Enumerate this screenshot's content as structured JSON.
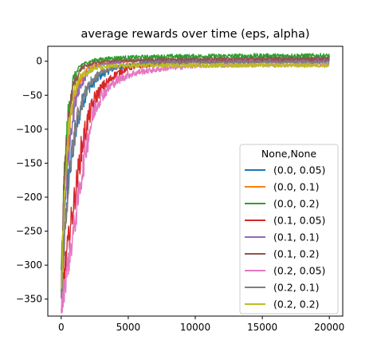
{
  "chart_data": {
    "type": "line",
    "title": "average rewards over time (eps, alpha)",
    "xlabel": "",
    "ylabel": "",
    "xlim": [
      -1000,
      21000
    ],
    "ylim": [
      -375,
      22
    ],
    "xticks": [
      0,
      5000,
      10000,
      15000,
      20000
    ],
    "xtick_labels": [
      "0",
      "5000",
      "10000",
      "15000",
      "20000"
    ],
    "yticks": [
      0,
      -50,
      -100,
      -150,
      -200,
      -250,
      -300,
      -350
    ],
    "ytick_labels": [
      "0",
      "−50",
      "−100",
      "−150",
      "−200",
      "−250",
      "−300",
      "−350"
    ],
    "grid": false,
    "legend": {
      "title": "None,None",
      "placement": "lower-right"
    },
    "series": [
      {
        "name": "(0.0, 0.05)",
        "color": "#1f77b4",
        "points": [
          [
            0,
            -340
          ],
          [
            500,
            -180
          ],
          [
            1000,
            -110
          ],
          [
            1500,
            -65
          ],
          [
            2000,
            -40
          ],
          [
            3000,
            -20
          ],
          [
            4000,
            -10
          ],
          [
            6000,
            -3
          ],
          [
            10000,
            0
          ],
          [
            15000,
            2
          ],
          [
            20000,
            3
          ]
        ]
      },
      {
        "name": "(0.0, 0.1)",
        "color": "#ff7f0e",
        "points": [
          [
            0,
            -330
          ],
          [
            300,
            -170
          ],
          [
            700,
            -80
          ],
          [
            1200,
            -35
          ],
          [
            2000,
            -10
          ],
          [
            3000,
            -3
          ],
          [
            5000,
            0
          ],
          [
            10000,
            1
          ],
          [
            15000,
            2
          ],
          [
            20000,
            2
          ]
        ]
      },
      {
        "name": "(0.0, 0.2)",
        "color": "#2ca02c",
        "points": [
          [
            0,
            -320
          ],
          [
            200,
            -180
          ],
          [
            500,
            -80
          ],
          [
            900,
            -25
          ],
          [
            1500,
            -5
          ],
          [
            2500,
            2
          ],
          [
            4000,
            5
          ],
          [
            8000,
            7
          ],
          [
            15000,
            8
          ],
          [
            20000,
            8
          ]
        ]
      },
      {
        "name": "(0.1, 0.05)",
        "color": "#d62728",
        "points": [
          [
            0,
            -350
          ],
          [
            500,
            -270
          ],
          [
            1000,
            -200
          ],
          [
            1500,
            -130
          ],
          [
            2000,
            -85
          ],
          [
            2500,
            -55
          ],
          [
            3000,
            -40
          ],
          [
            4000,
            -20
          ],
          [
            5000,
            -10
          ],
          [
            7000,
            -4
          ],
          [
            10000,
            -1
          ],
          [
            15000,
            0
          ],
          [
            20000,
            1
          ]
        ]
      },
      {
        "name": "(0.1, 0.1)",
        "color": "#9467bd",
        "points": [
          [
            0,
            -340
          ],
          [
            300,
            -200
          ],
          [
            700,
            -100
          ],
          [
            1200,
            -45
          ],
          [
            2000,
            -15
          ],
          [
            3000,
            -5
          ],
          [
            5000,
            0
          ],
          [
            10000,
            2
          ],
          [
            15000,
            3
          ],
          [
            20000,
            3
          ]
        ]
      },
      {
        "name": "(0.1, 0.2)",
        "color": "#8c564b",
        "points": [
          [
            0,
            -330
          ],
          [
            200,
            -190
          ],
          [
            500,
            -90
          ],
          [
            900,
            -35
          ],
          [
            1500,
            -10
          ],
          [
            2500,
            -2
          ],
          [
            4000,
            1
          ],
          [
            8000,
            3
          ],
          [
            15000,
            4
          ],
          [
            20000,
            4
          ]
        ]
      },
      {
        "name": "(0.2, 0.05)",
        "color": "#e377c2",
        "points": [
          [
            0,
            -360
          ],
          [
            500,
            -300
          ],
          [
            1000,
            -240
          ],
          [
            1500,
            -170
          ],
          [
            2000,
            -110
          ],
          [
            2500,
            -70
          ],
          [
            3000,
            -50
          ],
          [
            4000,
            -30
          ],
          [
            5000,
            -20
          ],
          [
            6000,
            -15
          ],
          [
            8000,
            -10
          ],
          [
            10000,
            -7
          ],
          [
            15000,
            -5
          ],
          [
            20000,
            -5
          ]
        ]
      },
      {
        "name": "(0.2, 0.1)",
        "color": "#7f7f7f",
        "points": [
          [
            0,
            -350
          ],
          [
            300,
            -240
          ],
          [
            700,
            -150
          ],
          [
            1200,
            -80
          ],
          [
            2000,
            -35
          ],
          [
            3000,
            -15
          ],
          [
            4000,
            -8
          ],
          [
            6000,
            -4
          ],
          [
            10000,
            -2
          ],
          [
            15000,
            -1
          ],
          [
            20000,
            -1
          ]
        ]
      },
      {
        "name": "(0.2, 0.2)",
        "color": "#bcbd22",
        "points": [
          [
            0,
            -340
          ],
          [
            200,
            -220
          ],
          [
            500,
            -110
          ],
          [
            900,
            -50
          ],
          [
            1500,
            -20
          ],
          [
            2500,
            -10
          ],
          [
            4000,
            -7
          ],
          [
            8000,
            -6
          ],
          [
            15000,
            -6
          ],
          [
            20000,
            -6
          ]
        ]
      }
    ]
  }
}
